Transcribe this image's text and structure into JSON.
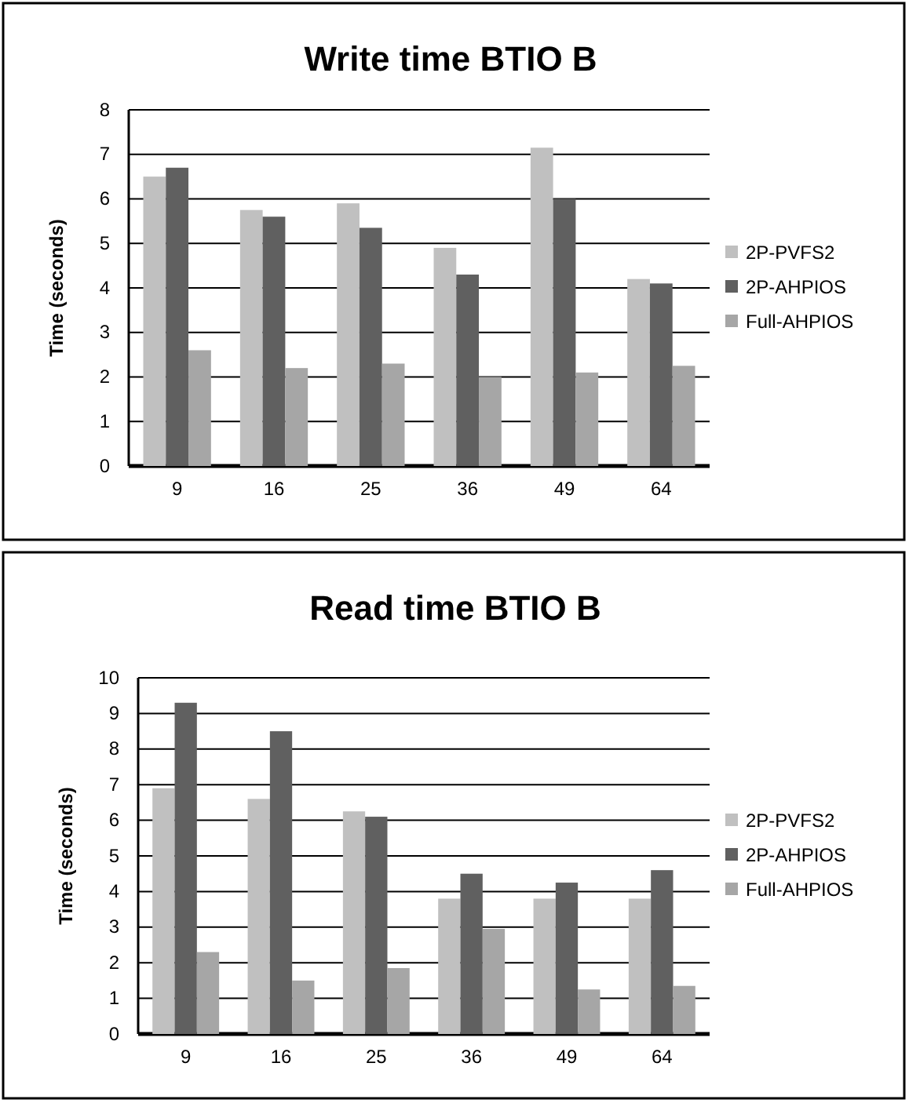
{
  "chart_data": [
    {
      "type": "bar",
      "title": "Write time BTIO B",
      "ylabel": "Time (seconds)",
      "categories": [
        "9",
        "16",
        "25",
        "36",
        "49",
        "64"
      ],
      "series": [
        {
          "name": "2P-PVFS2",
          "color": "#c0c0c0",
          "values": [
            6.5,
            5.75,
            5.9,
            4.9,
            7.15,
            4.2
          ]
        },
        {
          "name": "2P-AHPIOS",
          "color": "#606060",
          "values": [
            6.7,
            5.6,
            5.35,
            4.3,
            6.0,
            4.1
          ]
        },
        {
          "name": "Full-AHPIOS",
          "color": "#a6a6a6",
          "values": [
            2.6,
            2.2,
            2.3,
            2.0,
            2.1,
            2.25
          ]
        }
      ],
      "ylim": [
        0,
        8
      ],
      "yticks": [
        0,
        1,
        2,
        3,
        4,
        5,
        6,
        7,
        8
      ],
      "grid": "y",
      "legend": "right"
    },
    {
      "type": "bar",
      "title": "Read time BTIO B",
      "ylabel": "Time (seconds)",
      "categories": [
        "9",
        "16",
        "25",
        "36",
        "49",
        "64"
      ],
      "series": [
        {
          "name": "2P-PVFS2",
          "color": "#c0c0c0",
          "values": [
            6.9,
            6.6,
            6.25,
            3.8,
            3.8,
            3.8
          ]
        },
        {
          "name": "2P-AHPIOS",
          "color": "#606060",
          "values": [
            9.3,
            8.5,
            6.1,
            4.5,
            4.25,
            4.6
          ]
        },
        {
          "name": "Full-AHPIOS",
          "color": "#a6a6a6",
          "values": [
            2.3,
            1.5,
            1.85,
            2.95,
            1.25,
            1.35
          ]
        }
      ],
      "ylim": [
        0,
        10
      ],
      "yticks": [
        0,
        1,
        2,
        3,
        4,
        5,
        6,
        7,
        8,
        9,
        10
      ],
      "grid": "y",
      "legend": "right"
    }
  ]
}
